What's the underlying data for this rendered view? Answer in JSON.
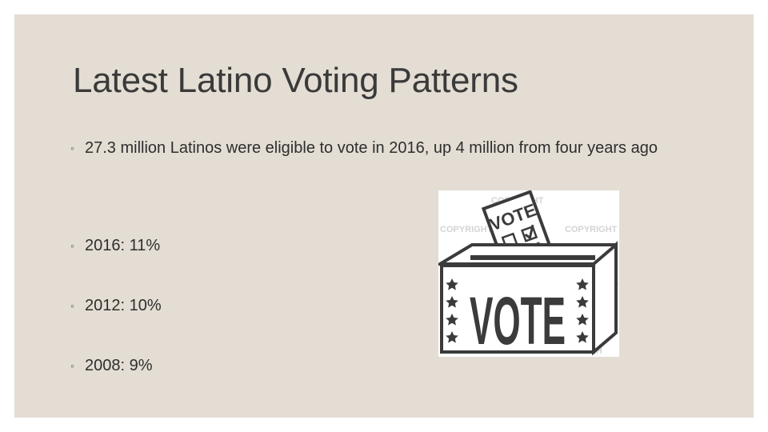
{
  "slide": {
    "title": "Latest Latino Voting Patterns",
    "bullet_marker": "◦",
    "bullets": [
      "27.3 million Latinos were eligible to vote in 2016, up 4 million from four years ago",
      "2016: 11%",
      "2012: 10%",
      "2008: 9%"
    ]
  },
  "image": {
    "icon": "ballot-box-icon",
    "ballot_text": "VOTE",
    "box_text": "VOTE",
    "watermark_text": "COPYRIGHT",
    "watermark_text_2": "FOTOSEARCH"
  },
  "colors": {
    "background": "#e3ddd3",
    "title": "#3a3a3a",
    "text": "#2e2e2e",
    "ink": "#3b3b3b"
  }
}
